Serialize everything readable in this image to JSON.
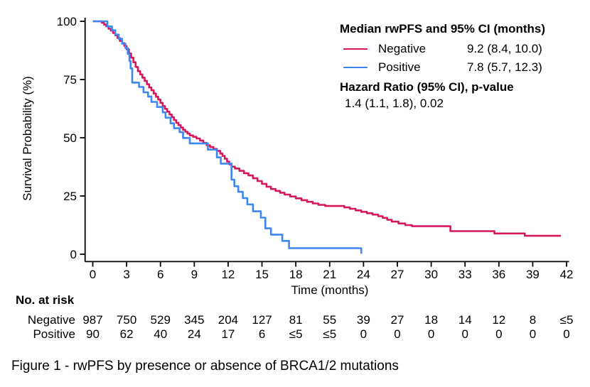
{
  "figure": {
    "caption": "Figure 1 - rwPFS by presence or absence of BRCA1/2 mutations"
  },
  "legend": {
    "title": "Median rwPFS and 95% CI (months)",
    "entries": [
      {
        "label": "Negative",
        "value": "9.2 (8.4, 10.0)",
        "color": "#d6175e"
      },
      {
        "label": "Positive",
        "value": "7.8 (5.7, 12.3)",
        "color": "#3e86f0"
      }
    ],
    "hr_title": "Hazard Ratio (95% CI), p-value",
    "hr_value": "1.4 (1.1, 1.8), 0.02"
  },
  "chart_data": {
    "type": "line",
    "subtype": "kaplan-meier-step",
    "title": "",
    "xlabel": "Time (months)",
    "ylabel": "Survival Probability (%)",
    "xlim": [
      0,
      42
    ],
    "ylim": [
      0,
      100
    ],
    "xticks": [
      0,
      3,
      6,
      9,
      12,
      15,
      18,
      21,
      24,
      27,
      30,
      33,
      36,
      39,
      42
    ],
    "yticks": [
      0,
      25,
      50,
      75,
      100
    ],
    "grid": false,
    "legend_position": "top-right",
    "axis_color": "#000000",
    "series": [
      {
        "name": "Negative",
        "color": "#d6175e",
        "median_months": 9.2,
        "points": [
          [
            0,
            100
          ],
          [
            0.8,
            99.4
          ],
          [
            1,
            98.6
          ],
          [
            1.2,
            97.8
          ],
          [
            1.4,
            96.8
          ],
          [
            1.6,
            96
          ],
          [
            1.8,
            95
          ],
          [
            2,
            94
          ],
          [
            2.2,
            92.8
          ],
          [
            2.4,
            91.6
          ],
          [
            2.6,
            90.6
          ],
          [
            2.8,
            89.4
          ],
          [
            3,
            88
          ],
          [
            3.2,
            86.2
          ],
          [
            3.4,
            84.4
          ],
          [
            3.6,
            82.4
          ],
          [
            3.8,
            80.4
          ],
          [
            4,
            78.6
          ],
          [
            4.2,
            77.2
          ],
          [
            4.4,
            75.8
          ],
          [
            4.6,
            74.4
          ],
          [
            4.8,
            73
          ],
          [
            5,
            71.6
          ],
          [
            5.2,
            70.4
          ],
          [
            5.4,
            69
          ],
          [
            5.6,
            67.6
          ],
          [
            5.8,
            66.4
          ],
          [
            6,
            65
          ],
          [
            6.2,
            63.6
          ],
          [
            6.4,
            62.4
          ],
          [
            6.6,
            61.2
          ],
          [
            6.8,
            60
          ],
          [
            7,
            58.8
          ],
          [
            7.2,
            57.6
          ],
          [
            7.4,
            56.4
          ],
          [
            7.6,
            55.4
          ],
          [
            7.8,
            54.4
          ],
          [
            8,
            53.4
          ],
          [
            8.2,
            52.6
          ],
          [
            8.4,
            51.8
          ],
          [
            8.6,
            51
          ],
          [
            8.9,
            50.4
          ],
          [
            9.2,
            49.7
          ],
          [
            9.5,
            48.8
          ],
          [
            9.8,
            47.8
          ],
          [
            10.1,
            46.8
          ],
          [
            10.4,
            46
          ],
          [
            10.7,
            45.2
          ],
          [
            11,
            44.4
          ],
          [
            11.3,
            43.2
          ],
          [
            11.5,
            42.2
          ],
          [
            11.7,
            41
          ],
          [
            11.9,
            39.8
          ],
          [
            12.1,
            38.6
          ],
          [
            12.3,
            37.6
          ],
          [
            12.6,
            36.8
          ],
          [
            13,
            35.8
          ],
          [
            13.4,
            34.8
          ],
          [
            13.8,
            33.8
          ],
          [
            14.2,
            32.6
          ],
          [
            14.6,
            31.4
          ],
          [
            15,
            30.2
          ],
          [
            15.4,
            29
          ],
          [
            15.8,
            28
          ],
          [
            16.2,
            27.2
          ],
          [
            16.6,
            26.4
          ],
          [
            17,
            25.6
          ],
          [
            17.5,
            24.8
          ],
          [
            18,
            24
          ],
          [
            18.5,
            23.2
          ],
          [
            19,
            22.5
          ],
          [
            19.5,
            21.8
          ],
          [
            20,
            21.2
          ],
          [
            20.6,
            20.7
          ],
          [
            22.3,
            20.1
          ],
          [
            22.8,
            19.5
          ],
          [
            23.3,
            18.8
          ],
          [
            23.8,
            18.2
          ],
          [
            24.3,
            17.6
          ],
          [
            24.8,
            17
          ],
          [
            25.3,
            16.3
          ],
          [
            25.7,
            15.6
          ],
          [
            26.1,
            14.8
          ],
          [
            26.5,
            14
          ],
          [
            27.1,
            13.2
          ],
          [
            27.7,
            12.5
          ],
          [
            28.3,
            12
          ],
          [
            31.7,
            9.9
          ],
          [
            35.6,
            8.9
          ],
          [
            38.3,
            7.9
          ],
          [
            41.5,
            7.9
          ]
        ]
      },
      {
        "name": "Positive",
        "color": "#3e86f0",
        "median_months": 7.8,
        "points": [
          [
            0,
            100
          ],
          [
            1.3,
            97.8
          ],
          [
            1.7,
            96.2
          ],
          [
            2,
            94.3
          ],
          [
            2.3,
            92.5
          ],
          [
            2.6,
            90.4
          ],
          [
            2.9,
            88.5
          ],
          [
            3.1,
            86
          ],
          [
            3.25,
            83
          ],
          [
            3.35,
            79.8
          ],
          [
            3.5,
            73.7
          ],
          [
            4.1,
            71.8
          ],
          [
            4.5,
            69.5
          ],
          [
            4.9,
            67.7
          ],
          [
            5.2,
            65.4
          ],
          [
            5.7,
            63.2
          ],
          [
            6.2,
            60.9
          ],
          [
            6.45,
            58.6
          ],
          [
            6.9,
            56.2
          ],
          [
            7.2,
            54.1
          ],
          [
            7.7,
            52.4
          ],
          [
            8,
            49.9
          ],
          [
            8.6,
            47.6
          ],
          [
            10.2,
            44.9
          ],
          [
            11,
            41.6
          ],
          [
            11.35,
            38.9
          ],
          [
            12.3,
            32
          ],
          [
            12.55,
            29.2
          ],
          [
            12.9,
            26.8
          ],
          [
            13.3,
            24.1
          ],
          [
            13.7,
            21.4
          ],
          [
            14.2,
            18.4
          ],
          [
            14.9,
            15.7
          ],
          [
            15.3,
            11.1
          ],
          [
            15.8,
            8.4
          ],
          [
            16.8,
            5.7
          ],
          [
            17.4,
            2.6
          ],
          [
            23.8,
            0.2
          ]
        ]
      }
    ]
  },
  "risk_table": {
    "title": "No. at risk",
    "times": [
      0,
      3,
      6,
      9,
      12,
      15,
      18,
      21,
      24,
      27,
      30,
      33,
      36,
      39,
      42
    ],
    "rows": [
      {
        "label": "Negative",
        "counts": [
          "987",
          "750",
          "529",
          "345",
          "204",
          "127",
          "81",
          "55",
          "39",
          "27",
          "18",
          "14",
          "12",
          "8",
          "≤5"
        ]
      },
      {
        "label": "Positive",
        "counts": [
          "90",
          "62",
          "40",
          "24",
          "17",
          "6",
          "≤5",
          "≤5",
          "0",
          "0",
          "0",
          "0",
          "0",
          "0",
          "0"
        ]
      }
    ]
  }
}
